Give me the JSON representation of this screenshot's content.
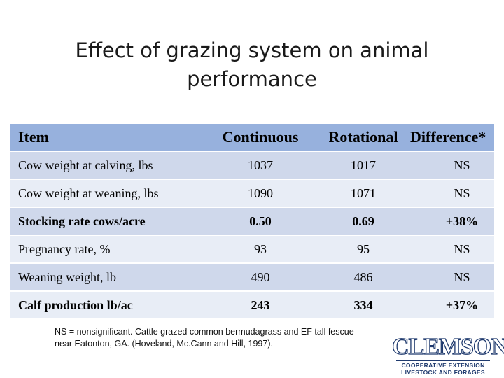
{
  "title": "Effect of grazing system on animal performance",
  "table": {
    "headers": [
      "Item",
      "Continuous",
      "Rotational",
      "Difference*"
    ],
    "rows": [
      {
        "item": "Cow weight at calving, lbs",
        "continuous": "1037",
        "rotational": "1017",
        "difference": "NS"
      },
      {
        "item": "Cow weight at weaning, lbs",
        "continuous": "1090",
        "rotational": "1071",
        "difference": "NS"
      },
      {
        "item": "Stocking rate cows/acre",
        "continuous": "0.50",
        "rotational": "0.69",
        "difference": "+38%"
      },
      {
        "item": "Pregnancy rate, %",
        "continuous": "93",
        "rotational": "95",
        "difference": "NS"
      },
      {
        "item": "Weaning weight, lb",
        "continuous": "490",
        "rotational": "486",
        "difference": "NS"
      },
      {
        "item": "Calf production lb/ac",
        "continuous": "243",
        "rotational": "334",
        "difference": "+37%"
      }
    ]
  },
  "footnote": {
    "line1": "NS = nonsignificant. Cattle grazed common bermudagrass and EF tall fescue",
    "line2": "near Eatonton, GA. (Hoveland, Mc.Cann and Hill, 1997)."
  },
  "logo": {
    "word": "CLEMSON",
    "line1": "COOPERATIVE EXTENSION",
    "line2": "LIVESTOCK AND FORAGES"
  },
  "colors": {
    "header_bg": "#97b1dd",
    "row_dark": "#cfd8eb",
    "row_light": "#e8edf6",
    "logo": "#1f3a6e"
  }
}
